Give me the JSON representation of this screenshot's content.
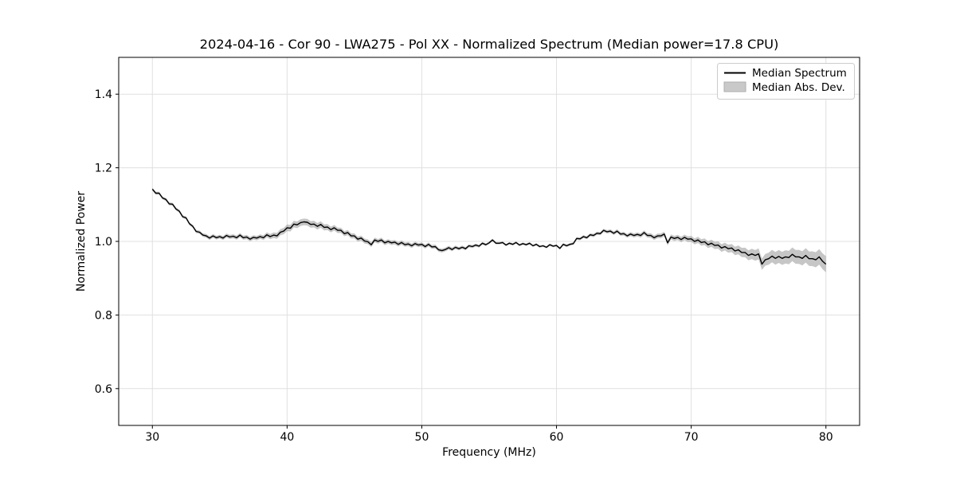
{
  "chart_data": {
    "type": "line",
    "title": "2024-04-16 - Cor 90 - LWA275 - Pol XX - Normalized Spectrum (Median power=17.8 CPU)",
    "xlabel": "Frequency (MHz)",
    "ylabel": "Normalized Power",
    "xlim": [
      27.5,
      82.5
    ],
    "ylim": [
      0.5,
      1.5
    ],
    "xticks": [
      30,
      40,
      50,
      60,
      70,
      80
    ],
    "xtick_labels": [
      "30",
      "40",
      "50",
      "60",
      "70",
      "80"
    ],
    "yticks": [
      0.6,
      0.8,
      1.0,
      1.2,
      1.4
    ],
    "ytick_labels": [
      "0.6",
      "0.8",
      "1.0",
      "1.2",
      "1.4"
    ],
    "grid": true,
    "legend": {
      "position": "upper right",
      "entries": [
        {
          "label": "Median Spectrum",
          "type": "line",
          "color": "#000000"
        },
        {
          "label": "Median Abs. Dev.",
          "type": "patch",
          "color": "#c9c9c9"
        }
      ]
    },
    "colors": {
      "line": "#000000",
      "band": "rgba(128,128,128,0.45)",
      "grid": "#e0e0e0",
      "spine": "#000000",
      "legend_border": "#cccccc"
    },
    "series": [
      {
        "name": "Median Spectrum",
        "x_start": 30.0,
        "x_step": 0.25,
        "values": [
          1.142,
          1.131,
          1.131,
          1.118,
          1.114,
          1.102,
          1.101,
          1.088,
          1.082,
          1.067,
          1.064,
          1.048,
          1.041,
          1.027,
          1.025,
          1.017,
          1.015,
          1.009,
          1.015,
          1.01,
          1.013,
          1.009,
          1.016,
          1.012,
          1.014,
          1.01,
          1.017,
          1.01,
          1.012,
          1.006,
          1.011,
          1.009,
          1.013,
          1.01,
          1.018,
          1.013,
          1.017,
          1.015,
          1.025,
          1.028,
          1.037,
          1.036,
          1.047,
          1.045,
          1.051,
          1.053,
          1.052,
          1.046,
          1.047,
          1.041,
          1.046,
          1.038,
          1.039,
          1.032,
          1.037,
          1.03,
          1.03,
          1.021,
          1.024,
          1.015,
          1.015,
          1.006,
          1.009,
          1.001,
          0.999,
          0.991,
          1.004,
          1.0,
          1.004,
          0.996,
          1.0,
          0.996,
          0.998,
          0.992,
          0.997,
          0.991,
          0.993,
          0.988,
          0.994,
          0.99,
          0.992,
          0.986,
          0.992,
          0.985,
          0.986,
          0.977,
          0.975,
          0.978,
          0.983,
          0.978,
          0.984,
          0.98,
          0.984,
          0.98,
          0.988,
          0.986,
          0.99,
          0.987,
          0.995,
          0.991,
          0.996,
          1.004,
          0.995,
          0.995,
          0.997,
          0.99,
          0.995,
          0.992,
          0.997,
          0.99,
          0.994,
          0.991,
          0.995,
          0.988,
          0.992,
          0.986,
          0.988,
          0.984,
          0.991,
          0.987,
          0.989,
          0.981,
          0.992,
          0.988,
          0.992,
          0.994,
          1.008,
          1.007,
          1.013,
          1.01,
          1.018,
          1.016,
          1.022,
          1.021,
          1.03,
          1.026,
          1.028,
          1.022,
          1.028,
          1.02,
          1.021,
          1.015,
          1.02,
          1.016,
          1.019,
          1.016,
          1.024,
          1.016,
          1.016,
          1.01,
          1.015,
          1.015,
          1.02,
          0.996,
          1.012,
          1.008,
          1.011,
          1.005,
          1.011,
          1.006,
          1.007,
          1.0,
          1.004,
          0.997,
          0.999,
          0.991,
          0.995,
          0.989,
          0.99,
          0.982,
          0.986,
          0.98,
          0.982,
          0.974,
          0.977,
          0.97,
          0.97,
          0.962,
          0.966,
          0.962,
          0.966,
          0.938,
          0.95,
          0.953,
          0.96,
          0.954,
          0.959,
          0.954,
          0.958,
          0.956,
          0.965,
          0.958,
          0.958,
          0.954,
          0.962,
          0.953,
          0.953,
          0.95,
          0.958,
          0.946,
          0.938
        ]
      },
      {
        "name": "Median Abs. Dev.",
        "desc": "half-width of shaded band around median, linearly interpolated",
        "points": [
          [
            30,
            0.004
          ],
          [
            33,
            0.004
          ],
          [
            34,
            0.005
          ],
          [
            38,
            0.006
          ],
          [
            40,
            0.009
          ],
          [
            42,
            0.009
          ],
          [
            44,
            0.007
          ],
          [
            48,
            0.006
          ],
          [
            52,
            0.005
          ],
          [
            54,
            0.004
          ],
          [
            56,
            0.003
          ],
          [
            60,
            0.003
          ],
          [
            62,
            0.004
          ],
          [
            65,
            0.005
          ],
          [
            67,
            0.006
          ],
          [
            69,
            0.007
          ],
          [
            70,
            0.008
          ],
          [
            71,
            0.009
          ],
          [
            72,
            0.01
          ],
          [
            73,
            0.011
          ],
          [
            74,
            0.013
          ],
          [
            75,
            0.015
          ],
          [
            76,
            0.017
          ],
          [
            77,
            0.018
          ],
          [
            78,
            0.019
          ],
          [
            79,
            0.02
          ],
          [
            80,
            0.022
          ]
        ]
      }
    ]
  }
}
